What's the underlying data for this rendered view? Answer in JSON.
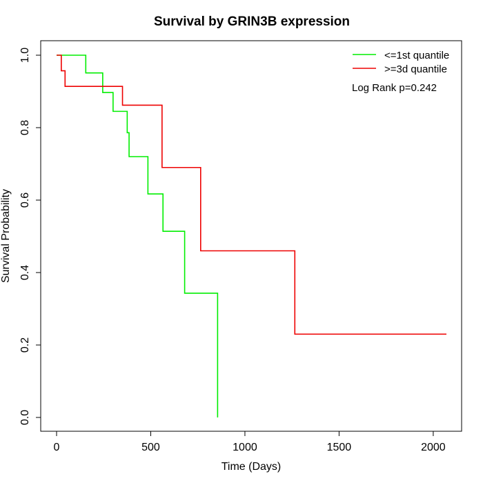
{
  "chart_data": {
    "type": "line",
    "subtype": "kaplan-meier-step",
    "title": "Survival by GRIN3B expression",
    "xlabel": "Time (Days)",
    "ylabel": "Survival Probability",
    "xlim": [
      0,
      2070
    ],
    "ylim": [
      0,
      1
    ],
    "x_ticks": [
      0,
      500,
      1000,
      1500,
      2000
    ],
    "x_tick_labels": [
      "0",
      "500",
      "1000",
      "1500",
      "2000"
    ],
    "y_ticks": [
      0.0,
      0.2,
      0.4,
      0.6,
      0.8,
      1.0
    ],
    "y_tick_labels": [
      "0.0",
      "0.2",
      "0.4",
      "0.6",
      "0.8",
      "1.0"
    ],
    "grid": false,
    "legend_position": "top-right",
    "annotation": "Log Rank p=0.242",
    "series": [
      {
        "name": "<=1st quantile",
        "color": "#00ee00",
        "x": [
          0,
          155,
          245,
          300,
          375,
          385,
          485,
          565,
          680,
          855,
          855
        ],
        "y": [
          1.0,
          0.951,
          0.897,
          0.845,
          0.786,
          0.72,
          0.617,
          0.514,
          0.343,
          0.343,
          0.0
        ]
      },
      {
        "name": ">=3d quantile",
        "color": "#ee0000",
        "x": [
          0,
          25,
          45,
          350,
          560,
          765,
          1265,
          2070
        ],
        "y": [
          1.0,
          0.957,
          0.914,
          0.862,
          0.69,
          0.46,
          0.23,
          0.23
        ]
      }
    ]
  }
}
